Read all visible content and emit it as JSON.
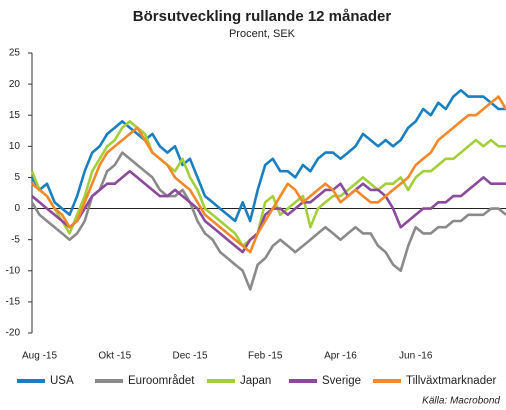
{
  "chart_data": {
    "type": "line",
    "title": "Börsutveckling rullande 12 månader",
    "subtitle": "Procent, SEK",
    "source": "Källa: Macrobond",
    "categories": [
      null,
      "Aug -15",
      null,
      null,
      null,
      null,
      null,
      null,
      null,
      null,
      null,
      "Okt -15",
      null,
      null,
      null,
      null,
      null,
      null,
      null,
      null,
      null,
      "Dec -15",
      null,
      null,
      null,
      null,
      null,
      null,
      null,
      null,
      null,
      "Feb -15",
      null,
      null,
      null,
      null,
      null,
      null,
      null,
      null,
      null,
      "Apr -16",
      null,
      null,
      null,
      null,
      null,
      null,
      null,
      null,
      null,
      "Jun -16",
      null,
      null,
      null,
      null,
      null,
      null,
      null,
      null,
      null,
      null,
      null,
      null
    ],
    "series": [
      {
        "name": "USA",
        "color": "#1a7fc1",
        "values": [
          5,
          3,
          4,
          1,
          0,
          -1,
          2,
          6,
          9,
          10,
          12,
          13,
          14,
          13,
          12,
          11,
          12,
          10,
          9,
          10,
          7,
          8,
          5,
          2,
          1,
          0,
          -1,
          -2,
          1,
          -2,
          3,
          7,
          8,
          6,
          6,
          5,
          7,
          6,
          8,
          9,
          9,
          8,
          9,
          10,
          12,
          11,
          10,
          11,
          10,
          11,
          13,
          14,
          16,
          15,
          17,
          16,
          18,
          19,
          18,
          18,
          18,
          17,
          16,
          16
        ]
      },
      {
        "name": "Euroområdet",
        "color": "#8a8a8a",
        "values": [
          1,
          -1,
          -2,
          -3,
          -4,
          -5,
          -4,
          -2,
          2,
          3,
          6,
          7,
          9,
          8,
          7,
          6,
          5,
          3,
          2,
          2,
          3,
          1,
          -2,
          -4,
          -5,
          -7,
          -8,
          -9,
          -10,
          -13,
          -9,
          -8,
          -6,
          -5,
          -6,
          -7,
          -6,
          -5,
          -4,
          -3,
          -4,
          -5,
          -4,
          -3,
          -4,
          -4,
          -6,
          -7,
          -9,
          -10,
          -6,
          -3,
          -4,
          -4,
          -3,
          -3,
          -2,
          -2,
          -1,
          -1,
          -1,
          0,
          0,
          -1
        ]
      },
      {
        "name": "Japan",
        "color": "#a3cf3a",
        "values": [
          6,
          3,
          2,
          0,
          -2,
          -4,
          -1,
          2,
          6,
          8,
          10,
          11,
          13,
          14,
          13,
          12,
          9,
          8,
          7,
          6,
          8,
          5,
          3,
          0,
          -1,
          -2,
          -3,
          -4,
          -6,
          -5,
          -4,
          1,
          2,
          -1,
          0,
          1,
          2,
          -3,
          0,
          1,
          2,
          2,
          3,
          4,
          5,
          4,
          3,
          4,
          4,
          5,
          3,
          5,
          6,
          6,
          7,
          8,
          8,
          9,
          10,
          11,
          10,
          11,
          10,
          10
        ]
      },
      {
        "name": "Sverige",
        "color": "#8b4a9c",
        "values": [
          2,
          1,
          0,
          -1,
          -2,
          -3,
          -2,
          0,
          2,
          3,
          4,
          4,
          5,
          6,
          5,
          4,
          3,
          2,
          2,
          3,
          2,
          1,
          0,
          -2,
          -3,
          -4,
          -5,
          -6,
          -7,
          -5,
          -4,
          -1,
          0,
          0,
          -1,
          0,
          1,
          1,
          2,
          3,
          3,
          4,
          2,
          3,
          4,
          3,
          3,
          2,
          0,
          -3,
          -2,
          -1,
          0,
          0,
          1,
          1,
          2,
          2,
          3,
          4,
          5,
          4,
          4,
          4
        ]
      },
      {
        "name": "Tillväxtmarknader",
        "color": "#f5882a",
        "values": [
          4,
          3,
          2,
          0,
          -1,
          -3,
          -2,
          1,
          4,
          7,
          9,
          10,
          11,
          12,
          13,
          11,
          9,
          8,
          7,
          5,
          4,
          3,
          1,
          -1,
          -2,
          -3,
          -4,
          -5,
          -6,
          -7,
          -4,
          -2,
          0,
          2,
          4,
          3,
          1,
          2,
          3,
          4,
          3,
          1,
          2,
          3,
          2,
          1,
          1,
          2,
          3,
          4,
          5,
          7,
          8,
          9,
          11,
          12,
          13,
          14,
          15,
          15,
          16,
          17,
          18,
          16
        ]
      }
    ],
    "ylim": [
      -20,
      25
    ],
    "yticks": [
      -20,
      -15,
      -10,
      -5,
      0,
      5,
      10,
      15,
      20,
      25
    ],
    "zero_line": true,
    "legend": "bottom"
  }
}
